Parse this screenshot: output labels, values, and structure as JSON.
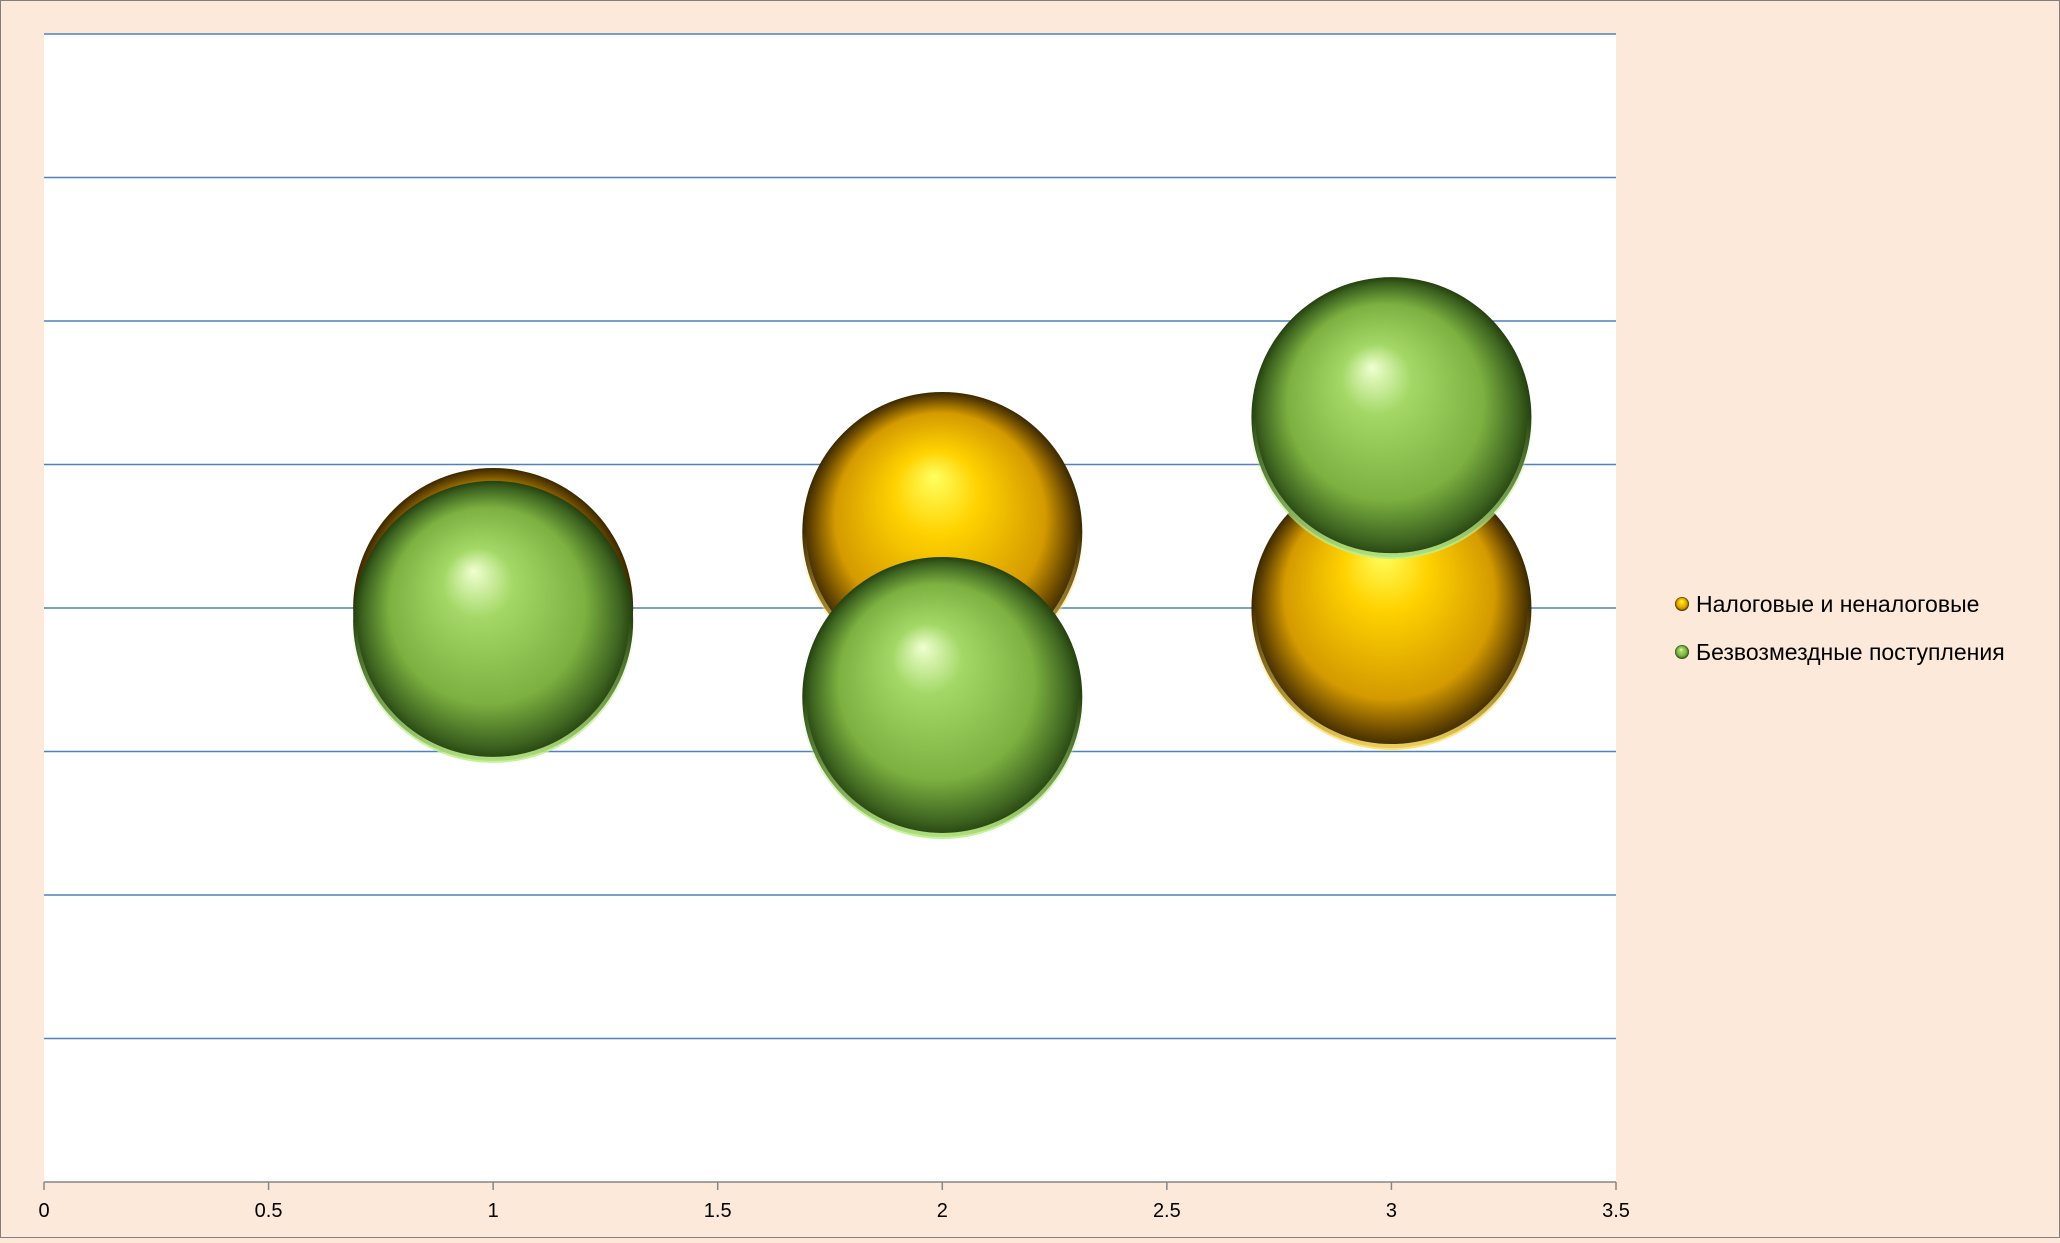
{
  "chart_data": {
    "type": "bubble",
    "title": "",
    "xlabel": "",
    "ylabel": "",
    "xlim": [
      0,
      3.5
    ],
    "x_ticks": [
      0,
      0.5,
      1,
      1.5,
      2,
      2.5,
      3,
      3.5
    ],
    "x_tick_labels": [
      "0",
      "0.5",
      "1",
      "1.5",
      "2",
      "2.5",
      "3",
      "3.5"
    ],
    "y_axis_labels_visible": false,
    "grid": true,
    "gridline_count": 8,
    "legend_position": "right",
    "series": [
      {
        "name": "Налоговые и неналоговые",
        "color": "#f0b400",
        "points": [
          {
            "x": 1,
            "y": 0.0
          },
          {
            "x": 2,
            "y": 0.53
          },
          {
            "x": 3,
            "y": 0.0
          }
        ]
      },
      {
        "name": "Безвозмездные поступления",
        "color": "#7cb83c",
        "points": [
          {
            "x": 1,
            "y": -0.09
          },
          {
            "x": 2,
            "y": -0.62
          },
          {
            "x": 3,
            "y": 1.33
          }
        ]
      }
    ]
  },
  "colors": {
    "background": "#fde9d9",
    "plot_area": "#ffffff",
    "gridline": "#4f81bd"
  }
}
